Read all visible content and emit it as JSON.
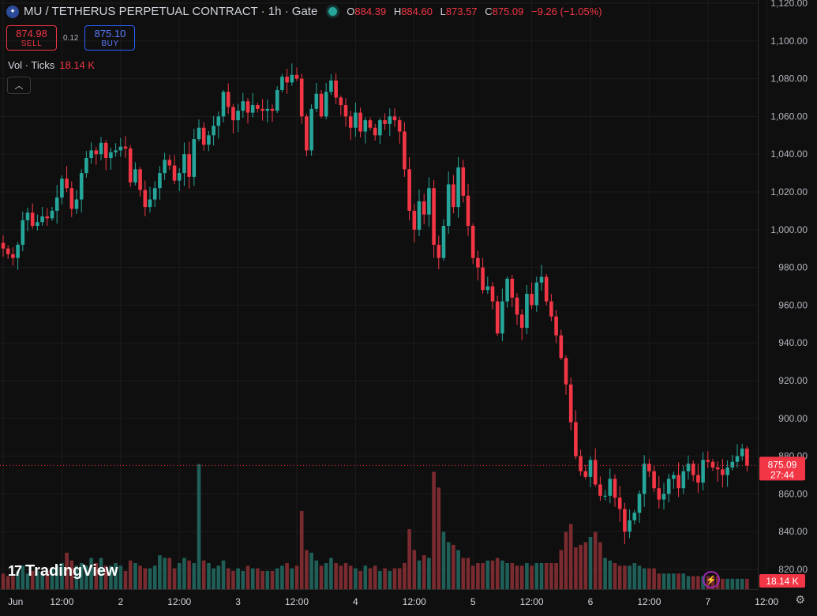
{
  "legend": {
    "symbol_icon": "symbol-logo-icon",
    "title": "MU / TETHERUS PERPETUAL CONTRACT · 1h · Gate",
    "open_label": "O",
    "open": "884.39",
    "high_label": "H",
    "high": "884.60",
    "low_label": "L",
    "low": "873.57",
    "close_label": "C",
    "close": "875.09",
    "change": "−9.26 (−1.05%)"
  },
  "trade": {
    "sell_price": "874.98",
    "sell_label": "SELL",
    "spread": "0.12",
    "buy_price": "875.10",
    "buy_label": "BUY"
  },
  "volume": {
    "label": "Vol · Ticks",
    "value": "18.14 K",
    "collapse_icon": "chevron-up-icon"
  },
  "branding": {
    "logo_text": "TradingView",
    "logo_mark": "17"
  },
  "price_badge": {
    "price": "875.09",
    "countdown": "27:44"
  },
  "volume_badge": "18.14 K",
  "colors": {
    "up": "#26a69a",
    "down": "#f23645",
    "up_vol": "#1f5f58",
    "down_vol": "#7a2b30",
    "background": "#0f0f0f"
  },
  "icons": {
    "lightning": "lightning-icon",
    "settings": "gear-icon"
  },
  "chart_data": {
    "type": "candlestick",
    "y_ticks": [
      "1,120.00",
      "1,100.00",
      "1,080.00",
      "1,060.00",
      "1,040.00",
      "1,020.00",
      "1,000.00",
      "980.00",
      "960.00",
      "940.00",
      "920.00",
      "900.00",
      "880.00",
      "860.00",
      "840.00",
      "820.00"
    ],
    "y_tick_values": [
      1120,
      1100,
      1080,
      1060,
      1040,
      1020,
      1000,
      980,
      960,
      940,
      920,
      900,
      880,
      860,
      840,
      820
    ],
    "x_ticks": [
      {
        "label": "Jun",
        "index": 0
      },
      {
        "label": "12:00",
        "index": 12
      },
      {
        "label": "2",
        "index": 24
      },
      {
        "label": "12:00",
        "index": 36
      },
      {
        "label": "3",
        "index": 48
      },
      {
        "label": "12:00",
        "index": 60
      },
      {
        "label": "4",
        "index": 72
      },
      {
        "label": "12:00",
        "index": 84
      },
      {
        "label": "5",
        "index": 96
      },
      {
        "label": "12:00",
        "index": 108
      },
      {
        "label": "6",
        "index": 120
      },
      {
        "label": "12:00",
        "index": 132
      },
      {
        "label": "7",
        "index": 144
      },
      {
        "label": "12:00",
        "index": 156
      }
    ],
    "ylim": [
      815,
      1125
    ],
    "last_price": 875.09,
    "closes": [
      990,
      987,
      985,
      992,
      1005,
      1009,
      1002,
      1004,
      1007,
      1006,
      1010,
      1017,
      1027,
      1022,
      1011,
      1016,
      1030,
      1038,
      1042,
      1040,
      1046,
      1038,
      1041,
      1042,
      1044,
      1043,
      1025,
      1032,
      1021,
      1012,
      1016,
      1022,
      1030,
      1037,
      1034,
      1026,
      1030,
      1040,
      1028,
      1048,
      1054,
      1045,
      1050,
      1055,
      1060,
      1073,
      1065,
      1058,
      1063,
      1068,
      1062,
      1066,
      1064,
      1063,
      1064,
      1063,
      1074,
      1081,
      1078,
      1082,
      1080,
      1060,
      1042,
      1064,
      1072,
      1060,
      1073,
      1079,
      1070,
      1066,
      1060,
      1054,
      1062,
      1052,
      1058,
      1054,
      1050,
      1058,
      1056,
      1060,
      1058,
      1052,
      1032,
      1010,
      1000,
      1015,
      1008,
      1022,
      992,
      985,
      1002,
      1024,
      1012,
      1033,
      1018,
      1002,
      985,
      980,
      968,
      970,
      962,
      945,
      962,
      974,
      964,
      955,
      948,
      966,
      960,
      972,
      975,
      962,
      954,
      944,
      932,
      918,
      898,
      880,
      872,
      869,
      878,
      865,
      859,
      859,
      868,
      858,
      852,
      840,
      846,
      850,
      860,
      876,
      872,
      863,
      857,
      860,
      868,
      870,
      863,
      872,
      876,
      870,
      866,
      878,
      877,
      874,
      873,
      870,
      874,
      877,
      880,
      884,
      875
    ],
    "volumes": [
      0.06,
      0.05,
      0.05,
      0.07,
      0.09,
      0.06,
      0.07,
      0.07,
      0.06,
      0.07,
      0.08,
      0.09,
      0.1,
      0.14,
      0.11,
      0.09,
      0.1,
      0.09,
      0.12,
      0.1,
      0.12,
      0.09,
      0.09,
      0.1,
      0.09,
      0.07,
      0.11,
      0.1,
      0.09,
      0.08,
      0.08,
      0.09,
      0.13,
      0.12,
      0.12,
      0.08,
      0.1,
      0.12,
      0.11,
      0.1,
      0.48,
      0.11,
      0.1,
      0.08,
      0.09,
      0.11,
      0.08,
      0.07,
      0.08,
      0.07,
      0.09,
      0.08,
      0.08,
      0.07,
      0.07,
      0.07,
      0.08,
      0.09,
      0.1,
      0.08,
      0.09,
      0.3,
      0.15,
      0.14,
      0.11,
      0.09,
      0.1,
      0.12,
      0.1,
      0.09,
      0.1,
      0.09,
      0.08,
      0.07,
      0.09,
      0.08,
      0.09,
      0.07,
      0.08,
      0.07,
      0.08,
      0.08,
      0.1,
      0.23,
      0.15,
      0.11,
      0.13,
      0.12,
      0.45,
      0.39,
      0.22,
      0.18,
      0.17,
      0.15,
      0.12,
      0.12,
      0.09,
      0.1,
      0.1,
      0.11,
      0.11,
      0.12,
      0.11,
      0.1,
      0.1,
      0.09,
      0.09,
      0.1,
      0.09,
      0.1,
      0.1,
      0.1,
      0.1,
      0.1,
      0.15,
      0.22,
      0.25,
      0.16,
      0.17,
      0.18,
      0.2,
      0.22,
      0.18,
      0.12,
      0.11,
      0.1,
      0.09,
      0.09,
      0.09,
      0.1,
      0.09,
      0.08,
      0.08,
      0.08,
      0.06,
      0.06,
      0.06,
      0.06,
      0.06,
      0.06,
      0.05,
      0.05,
      0.05,
      0.05,
      0.05,
      0.05,
      0.05,
      0.04,
      0.04,
      0.04,
      0.04,
      0.04,
      0.04,
      0.05
    ]
  }
}
